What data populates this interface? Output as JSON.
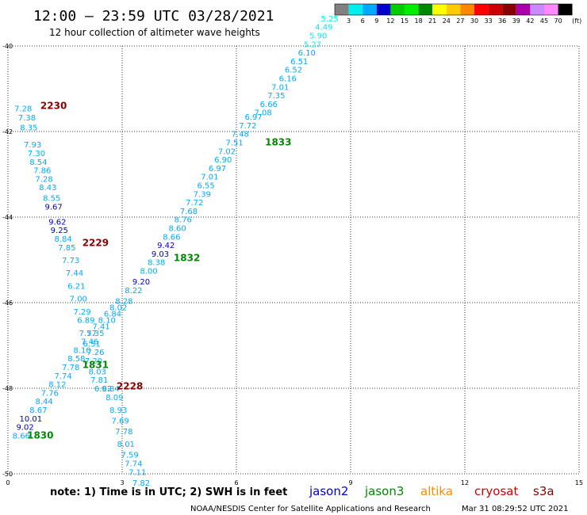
{
  "header": {
    "title": "12:00 – 23:59 UTC 03/28/2021",
    "subtitle": "12 hour collection of altimeter wave heights"
  },
  "colorbar": {
    "colors": [
      "#808080",
      "#00eeee",
      "#00aaff",
      "#0000cc",
      "#00cc00",
      "#00ee00",
      "#008800",
      "#ffff00",
      "#ffcc00",
      "#ff8800",
      "#ff0000",
      "#cc0000",
      "#880000",
      "#aa00aa",
      "#cc88ff",
      "#ff88ff",
      "#000000"
    ],
    "labels": [
      "3",
      "6",
      "9",
      "12",
      "15",
      "18",
      "21",
      "24",
      "27",
      "30",
      "33",
      "36",
      "39",
      "42",
      "45",
      "70"
    ],
    "unit": "(ft)"
  },
  "note": "note: 1) Time is in UTC; 2) SWH is in feet",
  "satellites": [
    {
      "name": "jason2",
      "color": "#0000cc"
    },
    {
      "name": "jason3",
      "color": "#008800"
    },
    {
      "name": "altika",
      "color": "#ff8800"
    },
    {
      "name": "cryosat",
      "color": "#cc0000"
    },
    {
      "name": "s3a",
      "color": "#880000"
    }
  ],
  "footer": {
    "credit": "NOAA/NESDIS Center for Satellite Applications and Research",
    "timestamp": "Mar 31 08:29:52 UTC 2021"
  },
  "chart_data": {
    "type": "scatter",
    "title": "12:00 – 23:59 UTC 03/28/2021",
    "xlim": [
      0,
      15
    ],
    "ylim": [
      -50,
      -40
    ],
    "xticks": [
      "0",
      "3",
      "6",
      "9",
      "12",
      "15"
    ],
    "yticks": [
      "-40",
      "-42",
      "-44",
      "-46",
      "-48",
      "-50"
    ],
    "grid": true,
    "tracks": [
      {
        "name": "s3a",
        "pass": "2230",
        "pass_color": "#880000",
        "pass_pos": [
          1.2,
          -41.4
        ],
        "points": [
          {
            "x": 0.4,
            "y": -41.45,
            "v": "7.28",
            "c": "#00aaff"
          },
          {
            "x": 0.5,
            "y": -41.67,
            "v": "7.38",
            "c": "#00aaff"
          },
          {
            "x": 0.55,
            "y": -41.9,
            "v": "8.35",
            "c": "#00aaff"
          },
          {
            "x": 0.65,
            "y": -42.3,
            "v": "7.93",
            "c": "#00aaff"
          },
          {
            "x": 0.75,
            "y": -42.5,
            "v": "7.30",
            "c": "#00aaff"
          },
          {
            "x": 0.8,
            "y": -42.7,
            "v": "8.54",
            "c": "#00aaff"
          },
          {
            "x": 0.9,
            "y": -42.9,
            "v": "7.86",
            "c": "#00aaff"
          },
          {
            "x": 0.95,
            "y": -43.1,
            "v": "7.28",
            "c": "#00aaff"
          },
          {
            "x": 1.05,
            "y": -43.3,
            "v": "8.43",
            "c": "#00aaff"
          },
          {
            "x": 1.15,
            "y": -43.55,
            "v": "8.55",
            "c": "#00aaff"
          },
          {
            "x": 1.2,
            "y": -43.75,
            "v": "9.67",
            "c": "#0000cc"
          }
        ]
      },
      {
        "name": "s3a",
        "pass": "2229",
        "pass_color": "#880000",
        "pass_pos": [
          2.3,
          -44.6
        ],
        "points": [
          {
            "x": 1.3,
            "y": -44.1,
            "v": "9.62",
            "c": "#0000cc"
          },
          {
            "x": 1.35,
            "y": -44.3,
            "v": "9.25",
            "c": "#0000cc"
          },
          {
            "x": 1.45,
            "y": -44.5,
            "v": "8.84",
            "c": "#00aaff"
          },
          {
            "x": 1.55,
            "y": -44.7,
            "v": "7.85",
            "c": "#00aaff"
          },
          {
            "x": 1.65,
            "y": -45.0,
            "v": "7.73",
            "c": "#00aaff"
          },
          {
            "x": 1.75,
            "y": -45.3,
            "v": "7.44",
            "c": "#00aaff"
          },
          {
            "x": 1.8,
            "y": -45.6,
            "v": "6.21",
            "c": "#00aaff"
          },
          {
            "x": 1.85,
            "y": -45.9,
            "v": "7.00",
            "c": "#00aaff"
          },
          {
            "x": 1.95,
            "y": -46.2,
            "v": "7.29",
            "c": "#00aaff"
          },
          {
            "x": 2.05,
            "y": -46.4,
            "v": "6.89",
            "c": "#00aaff"
          },
          {
            "x": 2.1,
            "y": -46.7,
            "v": "7.57",
            "c": "#00aaff"
          },
          {
            "x": 2.2,
            "y": -46.95,
            "v": "6.51",
            "c": "#00aaff"
          },
          {
            "x": 2.3,
            "y": -47.15,
            "v": "7.26",
            "c": "#00aaff"
          },
          {
            "x": 2.25,
            "y": -47.35,
            "v": "7.20",
            "c": "#00aaff"
          },
          {
            "x": 2.35,
            "y": -47.6,
            "v": "8.03",
            "c": "#00aaff"
          },
          {
            "x": 2.4,
            "y": -47.8,
            "v": "7.81",
            "c": "#00aaff"
          },
          {
            "x": 2.5,
            "y": -48.0,
            "v": "6.92",
            "c": "#00aaff"
          }
        ]
      },
      {
        "name": "s3a",
        "pass": "2228",
        "pass_color": "#880000",
        "pass_pos": [
          3.2,
          -47.95
        ],
        "points": [
          {
            "x": 2.7,
            "y": -48.0,
            "v": "6.84",
            "c": "#00aaff"
          },
          {
            "x": 2.8,
            "y": -48.2,
            "v": "8.09",
            "c": "#00aaff"
          },
          {
            "x": 2.9,
            "y": -48.5,
            "v": "8.93",
            "c": "#00aaff"
          },
          {
            "x": 2.95,
            "y": -48.75,
            "v": "7.69",
            "c": "#00aaff"
          },
          {
            "x": 3.05,
            "y": -49.0,
            "v": "7.78",
            "c": "#00aaff"
          },
          {
            "x": 3.1,
            "y": -49.3,
            "v": "8.01",
            "c": "#00aaff"
          },
          {
            "x": 3.2,
            "y": -49.55,
            "v": "7.59",
            "c": "#00aaff"
          },
          {
            "x": 3.3,
            "y": -49.75,
            "v": "7.74",
            "c": "#00aaff"
          },
          {
            "x": 3.4,
            "y": -49.95,
            "v": "7.11",
            "c": "#00aaff"
          },
          {
            "x": 3.5,
            "y": -50.2,
            "v": "7.82",
            "c": "#00aaff"
          }
        ]
      },
      {
        "name": "jason3",
        "pass": "1830",
        "pass_color": "#008800",
        "pass_pos": [
          0.85,
          -49.1
        ],
        "points": [
          {
            "x": 0.35,
            "y": -49.1,
            "v": "8.66",
            "c": "#00aaff"
          },
          {
            "x": 0.45,
            "y": -48.9,
            "v": "9.02",
            "c": "#0000cc"
          },
          {
            "x": 0.6,
            "y": -48.7,
            "v": "10.01",
            "c": "#0000cc"
          },
          {
            "x": 0.8,
            "y": -48.5,
            "v": "8.67",
            "c": "#00aaff"
          },
          {
            "x": 0.95,
            "y": -48.3,
            "v": "8.44",
            "c": "#00aaff"
          },
          {
            "x": 1.1,
            "y": -48.1,
            "v": "7.76",
            "c": "#00aaff"
          },
          {
            "x": 1.3,
            "y": -47.9,
            "v": "8.12",
            "c": "#00aaff"
          },
          {
            "x": 1.45,
            "y": -47.7,
            "v": "7.74",
            "c": "#00aaff"
          },
          {
            "x": 1.65,
            "y": -47.5,
            "v": "7.78",
            "c": "#00aaff"
          },
          {
            "x": 1.8,
            "y": -47.3,
            "v": "8.58",
            "c": "#00aaff"
          },
          {
            "x": 1.95,
            "y": -47.1,
            "v": "8.10",
            "c": "#00aaff"
          },
          {
            "x": 2.15,
            "y": -46.9,
            "v": "7.46",
            "c": "#00aaff"
          },
          {
            "x": 2.3,
            "y": -46.7,
            "v": "7.35",
            "c": "#00aaff"
          },
          {
            "x": 2.45,
            "y": -46.55,
            "v": "7.41",
            "c": "#00aaff"
          },
          {
            "x": 2.6,
            "y": -46.4,
            "v": "8.10",
            "c": "#00aaff"
          },
          {
            "x": 2.75,
            "y": -46.25,
            "v": "6.84",
            "c": "#00aaff"
          },
          {
            "x": 2.9,
            "y": -46.1,
            "v": "8.02",
            "c": "#00aaff"
          },
          {
            "x": 3.05,
            "y": -45.95,
            "v": "8.28",
            "c": "#00aaff"
          },
          {
            "x": 3.3,
            "y": -45.7,
            "v": "8.22",
            "c": "#00aaff"
          },
          {
            "x": 3.5,
            "y": -45.5,
            "v": "9.20",
            "c": "#0000cc"
          }
        ]
      },
      {
        "name": "jason3",
        "pass": "1831",
        "pass_color": "#008800",
        "pass_pos": [
          2.3,
          -47.45
        ],
        "points": []
      },
      {
        "name": "jason3",
        "pass": "1832",
        "pass_color": "#008800",
        "pass_pos": [
          4.7,
          -44.95
        ],
        "points": [
          {
            "x": 3.7,
            "y": -45.25,
            "v": "8.00",
            "c": "#00aaff"
          },
          {
            "x": 3.9,
            "y": -45.05,
            "v": "8.38",
            "c": "#00aaff"
          },
          {
            "x": 4.0,
            "y": -44.85,
            "v": "9.03",
            "c": "#0000cc"
          },
          {
            "x": 4.15,
            "y": -44.65,
            "v": "9.42",
            "c": "#0000cc"
          },
          {
            "x": 4.3,
            "y": -44.45,
            "v": "8.66",
            "c": "#00aaff"
          },
          {
            "x": 4.45,
            "y": -44.25,
            "v": "8.60",
            "c": "#00aaff"
          },
          {
            "x": 4.6,
            "y": -44.05,
            "v": "8.76",
            "c": "#00aaff"
          },
          {
            "x": 4.75,
            "y": -43.85,
            "v": "7.68",
            "c": "#00aaff"
          },
          {
            "x": 4.9,
            "y": -43.65,
            "v": "7.72",
            "c": "#00aaff"
          },
          {
            "x": 5.1,
            "y": -43.45,
            "v": "7.39",
            "c": "#00aaff"
          },
          {
            "x": 5.2,
            "y": -43.25,
            "v": "6.55",
            "c": "#00aaff"
          },
          {
            "x": 5.3,
            "y": -43.05,
            "v": "7.01",
            "c": "#00aaff"
          },
          {
            "x": 5.5,
            "y": -42.85,
            "v": "6.97",
            "c": "#00aaff"
          },
          {
            "x": 5.65,
            "y": -42.65,
            "v": "6.90",
            "c": "#00aaff"
          },
          {
            "x": 5.75,
            "y": -42.45,
            "v": "7.02",
            "c": "#00aaff"
          },
          {
            "x": 5.95,
            "y": -42.25,
            "v": "7.51",
            "c": "#00aaff"
          },
          {
            "x": 6.1,
            "y": -42.05,
            "v": "7.48",
            "c": "#00aaff"
          },
          {
            "x": 6.3,
            "y": -41.85,
            "v": "7.72",
            "c": "#00aaff"
          },
          {
            "x": 6.45,
            "y": -41.65,
            "v": "6.97",
            "c": "#00aaff"
          }
        ]
      },
      {
        "name": "jason3",
        "pass": "1833",
        "pass_color": "#008800",
        "pass_pos": [
          7.1,
          -42.25
        ],
        "points": [
          {
            "x": 6.7,
            "y": -41.55,
            "v": "7.08",
            "c": "#00aaff"
          },
          {
            "x": 6.85,
            "y": -41.35,
            "v": "6.66",
            "c": "#00aaff"
          },
          {
            "x": 7.05,
            "y": -41.15,
            "v": "7.35",
            "c": "#00aaff"
          },
          {
            "x": 7.15,
            "y": -40.95,
            "v": "7.01",
            "c": "#00aaff"
          },
          {
            "x": 7.35,
            "y": -40.75,
            "v": "6.16",
            "c": "#00aaff"
          },
          {
            "x": 7.5,
            "y": -40.55,
            "v": "6.52",
            "c": "#00aaff"
          },
          {
            "x": 7.65,
            "y": -40.35,
            "v": "6.51",
            "c": "#00aaff"
          },
          {
            "x": 7.85,
            "y": -40.15,
            "v": "6.10",
            "c": "#00aaff"
          },
          {
            "x": 8.0,
            "y": -39.95,
            "v": "5.27",
            "c": "#00eeee"
          },
          {
            "x": 8.15,
            "y": -39.75,
            "v": "5.90",
            "c": "#00eeee"
          },
          {
            "x": 8.3,
            "y": -39.55,
            "v": "4.49",
            "c": "#00eeee"
          },
          {
            "x": 8.45,
            "y": -39.35,
            "v": "5.25",
            "c": "#00eeee"
          }
        ]
      }
    ]
  }
}
